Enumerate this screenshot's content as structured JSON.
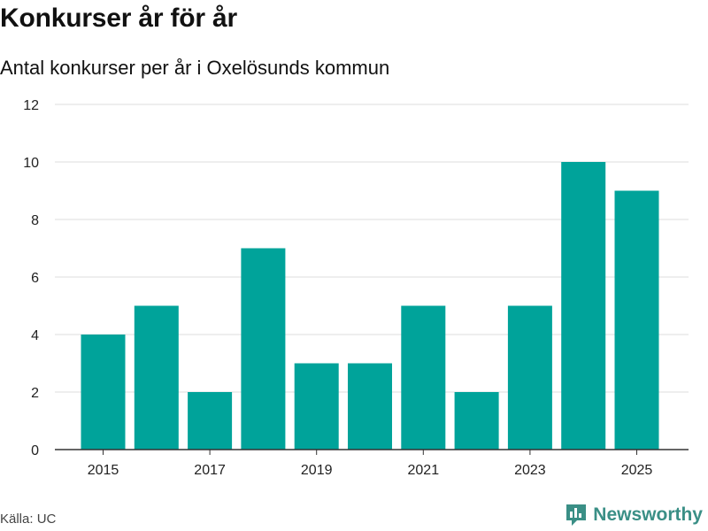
{
  "title": "Konkurser år för år",
  "subtitle": "Antal konkurser per år i Oxelösunds kommun",
  "source": "Källa: UC",
  "brand": {
    "name": "Newsworthy",
    "logo_icon": "chart-logo-icon",
    "color": "#3a8f86"
  },
  "colors": {
    "bar": "#00a39a",
    "grid": "#dddddd",
    "axis": "#333333"
  },
  "chart_data": {
    "type": "bar",
    "title": "Konkurser år för år",
    "subtitle": "Antal konkurser per år i Oxelösunds kommun",
    "categories": [
      "2015",
      "2016",
      "2017",
      "2018",
      "2019",
      "2020",
      "2021",
      "2022",
      "2023",
      "2024",
      "2025"
    ],
    "values": [
      4,
      5,
      2,
      7,
      3,
      3,
      5,
      2,
      5,
      10,
      9
    ],
    "x_tick_labels": [
      "2015",
      "2017",
      "2019",
      "2021",
      "2023",
      "2025"
    ],
    "y_ticks": [
      0,
      2,
      4,
      6,
      8,
      10,
      12
    ],
    "ylim": [
      0,
      12
    ],
    "xlabel": "",
    "ylabel": "",
    "grid": true
  }
}
